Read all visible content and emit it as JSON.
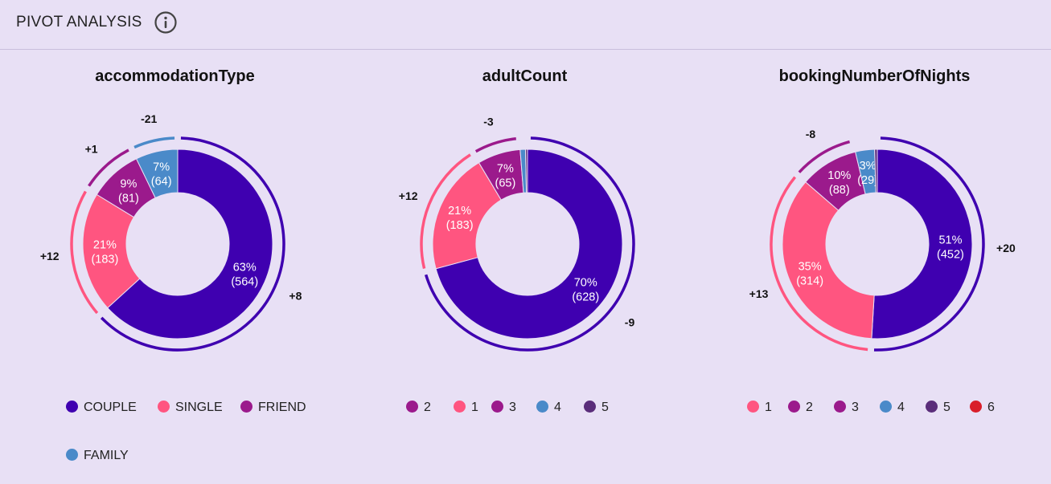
{
  "header": {
    "title": "PIVOT ANALYSIS",
    "info_icon": "info-circle-icon"
  },
  "chart_data": [
    {
      "type": "donut",
      "title": "accommodationType",
      "slices": [
        {
          "name": "COUPLE",
          "percent": "63%",
          "count": 564,
          "delta": "+8",
          "color": "#3f00b0"
        },
        {
          "name": "SINGLE",
          "percent": "21%",
          "count": 183,
          "delta": "+12",
          "color": "#ff5580"
        },
        {
          "name": "FRIEND",
          "percent": "9%",
          "count": 81,
          "delta": "+1",
          "color": "#9b1a8c"
        },
        {
          "name": "FAMILY",
          "percent": "7%",
          "count": 64,
          "delta": "-21",
          "color": "#4a8ac9"
        }
      ],
      "legend": [
        "COUPLE",
        "SINGLE",
        "FRIEND",
        "FAMILY"
      ]
    },
    {
      "type": "donut",
      "title": "adultCount",
      "slices": [
        {
          "name": "2",
          "percent": "70%",
          "count": 628,
          "delta": "-9",
          "color": "#3f00b0"
        },
        {
          "name": "1",
          "percent": "21%",
          "count": 183,
          "delta": "+12",
          "color": "#ff5580"
        },
        {
          "name": "3",
          "percent": "7%",
          "count": 65,
          "delta": "-3",
          "color": "#9b1a8c"
        },
        {
          "name": "4",
          "percent": "",
          "count": 8,
          "delta": "",
          "color": "#4a8ac9"
        },
        {
          "name": "5",
          "percent": "",
          "count": 3,
          "delta": "",
          "color": "#5a2d7a"
        }
      ],
      "legend": [
        "2",
        "1",
        "3",
        "4",
        "5"
      ],
      "legend_colors": [
        "#9b1a8c",
        "#ff5580",
        "#9b1a8c",
        "#4a8ac9",
        "#5a2d7a"
      ]
    },
    {
      "type": "donut",
      "title": "bookingNumberOfNights",
      "slices": [
        {
          "name": "1",
          "percent": "51%",
          "count": 452,
          "delta": "+20",
          "color": "#3f00b0"
        },
        {
          "name": "2",
          "percent": "35%",
          "count": 314,
          "delta": "+13",
          "color": "#ff5580"
        },
        {
          "name": "3",
          "percent": "10%",
          "count": 88,
          "delta": "-8",
          "color": "#9b1a8c"
        },
        {
          "name": "4",
          "percent": "3%",
          "count": 29,
          "delta": "",
          "color": "#4a8ac9"
        },
        {
          "name": "5",
          "percent": "",
          "count": 4,
          "delta": "",
          "color": "#5a2d7a"
        },
        {
          "name": "6",
          "percent": "",
          "count": 0,
          "delta": "",
          "color": "#d91e2a"
        }
      ],
      "legend": [
        "1",
        "2",
        "3",
        "4",
        "5",
        "6"
      ],
      "legend_colors": [
        "#ff5580",
        "#9b1a8c",
        "#9b1a8c",
        "#4a8ac9",
        "#5a2d7a",
        "#d91e2a"
      ]
    }
  ]
}
